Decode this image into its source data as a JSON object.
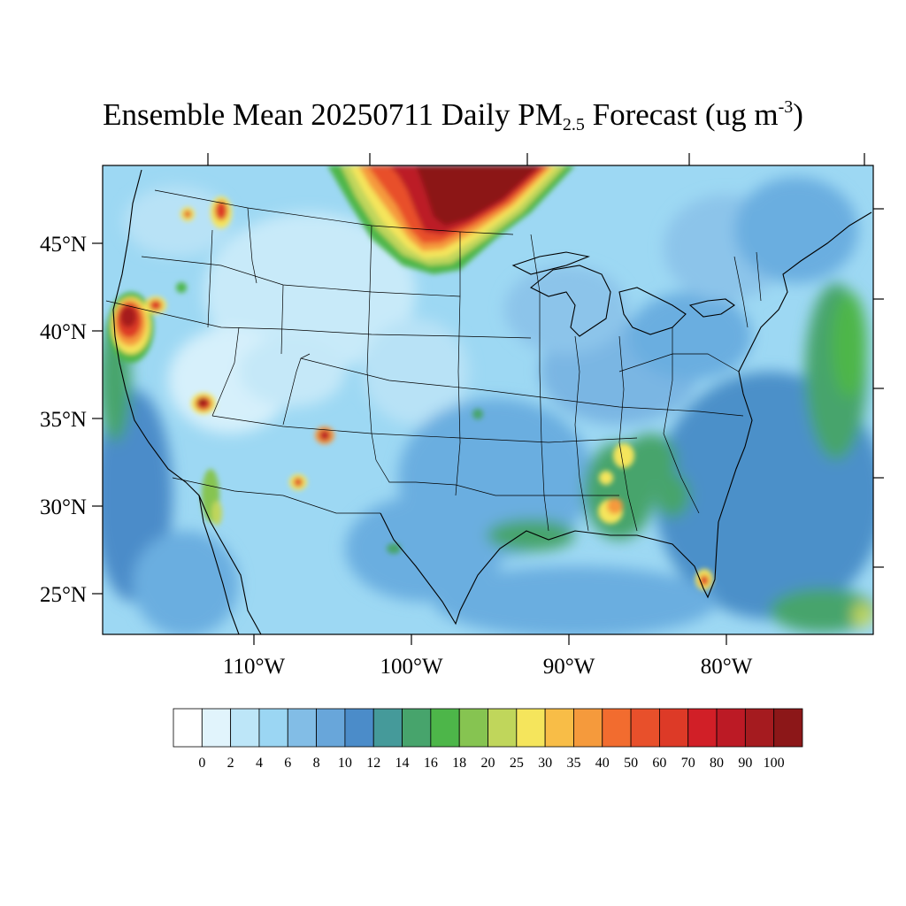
{
  "title": {
    "prefix": "Ensemble Mean 20250711 Daily PM",
    "sub": "2.5",
    "middle": " Forecast (ug m",
    "sup": "-3",
    "suffix": ")"
  },
  "map": {
    "type": "filled-contour-map",
    "variable": "Daily PM2.5",
    "units": "ug m-3",
    "date": "20250711",
    "lat_labels": [
      "45°N",
      "40°N",
      "35°N",
      "30°N",
      "25°N"
    ],
    "lon_labels": [
      "110°W",
      "100°W",
      "90°W",
      "80°W"
    ],
    "background_colors": {
      "low": "#9dd8f3",
      "mid": "#6aaee0",
      "sea": "#4b90c9"
    }
  },
  "colorbar": {
    "levels": [
      "0",
      "2",
      "4",
      "6",
      "8",
      "10",
      "12",
      "14",
      "16",
      "18",
      "20",
      "25",
      "30",
      "35",
      "40",
      "50",
      "60",
      "70",
      "80",
      "90",
      "100"
    ],
    "colors": [
      "#ffffff",
      "#e1f4fc",
      "#bde6f8",
      "#9bd6f3",
      "#82bde6",
      "#68a6da",
      "#4b8cc9",
      "#459a9a",
      "#47a46c",
      "#4db649",
      "#86c451",
      "#c0d65b",
      "#f5e55c",
      "#f8bd47",
      "#f59a3c",
      "#f26c2f",
      "#e8502b",
      "#dd3a27",
      "#d11f27",
      "#bc1a25",
      "#a51b1f",
      "#8c1718"
    ]
  }
}
